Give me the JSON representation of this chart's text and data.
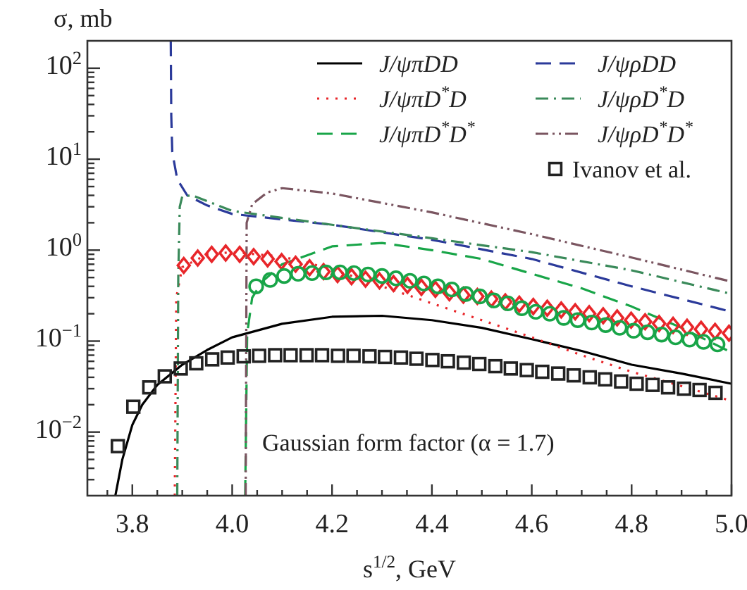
{
  "chart_data": {
    "type": "line",
    "xlabel": "s$^{1/2}$, GeV",
    "ylabel": "σ, mb",
    "log": "y",
    "xlim": [
      3.71,
      5.0
    ],
    "ylim": [
      0.002,
      200
    ],
    "xticks": [
      {
        "value": 3.75,
        "label": null
      },
      3.8,
      {
        "value": 3.85,
        "label": null
      },
      {
        "value": 3.9,
        "label": null
      },
      {
        "value": 3.95,
        "label": null
      },
      {
        "value": 4.0,
        "label": "4.0"
      },
      {
        "value": 4.05,
        "label": null
      },
      {
        "value": 4.1,
        "label": null
      },
      {
        "value": 4.15,
        "label": null
      },
      4.2,
      {
        "value": 4.25,
        "label": null
      },
      {
        "value": 4.3,
        "label": null
      },
      {
        "value": 4.35,
        "label": null
      },
      4.4,
      {
        "value": 4.45,
        "label": null
      },
      {
        "value": 4.5,
        "label": null
      },
      {
        "value": 4.55,
        "label": null
      },
      4.6,
      {
        "value": 4.65,
        "label": null
      },
      {
        "value": 4.7,
        "label": null
      },
      {
        "value": 4.75,
        "label": null
      },
      4.8,
      {
        "value": 4.85,
        "label": null
      },
      {
        "value": 4.9,
        "label": null
      },
      {
        "value": 4.95,
        "label": null
      },
      {
        "value": 5.0,
        "label": "5.0"
      }
    ],
    "yticks": [
      {
        "value": 0.003,
        "label": null
      },
      {
        "value": 0.004,
        "label": null
      },
      {
        "value": 0.005,
        "label": null
      },
      {
        "value": 0.006,
        "label": null
      },
      {
        "value": 0.007,
        "label": null
      },
      {
        "value": 0.008,
        "label": null
      },
      {
        "value": 0.009,
        "label": null
      },
      {
        "value": 0.01,
        "label": "10$^{−2}$"
      },
      {
        "value": 0.02,
        "label": null
      },
      {
        "value": 0.03,
        "label": null
      },
      {
        "value": 0.04,
        "label": null
      },
      {
        "value": 0.05,
        "label": null
      },
      {
        "value": 0.06,
        "label": null
      },
      {
        "value": 0.07,
        "label": null
      },
      {
        "value": 0.08,
        "label": null
      },
      {
        "value": 0.09,
        "label": null
      },
      {
        "value": 0.1,
        "label": "10$^{−1}$"
      },
      {
        "value": 0.2,
        "label": null
      },
      {
        "value": 0.3,
        "label": null
      },
      {
        "value": 0.4,
        "label": null
      },
      {
        "value": 0.5,
        "label": null
      },
      {
        "value": 0.6,
        "label": null
      },
      {
        "value": 0.7,
        "label": null
      },
      {
        "value": 0.8,
        "label": null
      },
      {
        "value": 0.9,
        "label": null
      },
      {
        "value": 1,
        "label": "10$^{0}$"
      },
      {
        "value": 2,
        "label": null
      },
      {
        "value": 3,
        "label": null
      },
      {
        "value": 4,
        "label": null
      },
      {
        "value": 5,
        "label": null
      },
      {
        "value": 6,
        "label": null
      },
      {
        "value": 7,
        "label": null
      },
      {
        "value": 8,
        "label": null
      },
      {
        "value": 9,
        "label": null
      },
      {
        "value": 10,
        "label": "10$^{1}$"
      },
      {
        "value": 20,
        "label": null
      },
      {
        "value": 30,
        "label": null
      },
      {
        "value": 40,
        "label": null
      },
      {
        "value": 50,
        "label": null
      },
      {
        "value": 60,
        "label": null
      },
      {
        "value": 70,
        "label": null
      },
      {
        "value": 80,
        "label": null
      },
      {
        "value": 90,
        "label": null
      },
      {
        "value": 100,
        "label": "10$^{2}$"
      }
    ],
    "grid": false,
    "legend": "top right",
    "annotations": [
      "Gaussian form factor (α = 1.7)"
    ],
    "series": [
      {
        "name": "J/ψπDD",
        "color": "#000000",
        "line_style": "solid",
        "marker": "none",
        "x": [
          3.766,
          3.78,
          3.8,
          3.82,
          3.85,
          3.9,
          3.95,
          4.0,
          4.1,
          4.2,
          4.3,
          4.4,
          4.5,
          4.6,
          4.7,
          4.8,
          4.9,
          5.0
        ],
        "values": [
          0.002,
          0.005,
          0.012,
          0.02,
          0.033,
          0.055,
          0.08,
          0.11,
          0.155,
          0.185,
          0.19,
          0.17,
          0.14,
          0.105,
          0.078,
          0.055,
          0.044,
          0.034
        ]
      },
      {
        "name": "J/ψπD$^{*}$D",
        "color": "#e8262a",
        "line_style": "dotted",
        "marker": "none",
        "x": [
          3.885,
          3.888,
          3.9,
          3.95,
          4.0,
          4.1,
          4.2,
          4.3,
          4.4,
          4.5,
          4.6,
          4.7,
          4.8,
          4.9,
          5.0
        ],
        "values": [
          0.002,
          0.3,
          0.65,
          0.9,
          0.95,
          0.85,
          0.62,
          0.4,
          0.26,
          0.17,
          0.11,
          0.07,
          0.046,
          0.032,
          0.022
        ]
      },
      {
        "name": "J/ψπD$^{*}$D$^{*}$",
        "color": "#18a548",
        "line_style": "dashed",
        "marker": "none",
        "x": [
          4.026,
          4.03,
          4.04,
          4.06,
          4.1,
          4.2,
          4.3,
          4.4,
          4.5,
          4.6,
          4.7,
          4.8,
          4.9,
          5.0
        ],
        "values": [
          0.002,
          0.12,
          0.3,
          0.45,
          0.7,
          1.1,
          1.2,
          1.0,
          0.8,
          0.55,
          0.38,
          0.24,
          0.14,
          0.075
        ]
      },
      {
        "name": "J/ψρDD",
        "color": "#2b3a9a",
        "line_style": "dashed",
        "marker": "none",
        "x": [
          3.877,
          3.878,
          3.88,
          3.89,
          3.91,
          3.95,
          4.0,
          4.2,
          4.4,
          4.6,
          4.8,
          5.0
        ],
        "values": [
          200,
          30,
          12,
          6,
          4,
          3.1,
          2.5,
          1.9,
          1.3,
          0.8,
          0.4,
          0.21
        ]
      },
      {
        "name": "J/ψρD$^{*}$D",
        "color": "#3a8a5a",
        "line_style": "dashdot",
        "marker": "none",
        "x": [
          3.89,
          3.892,
          3.895,
          3.9,
          3.92,
          4.0,
          4.2,
          4.4,
          4.6,
          4.8,
          5.0
        ],
        "values": [
          0.002,
          0.5,
          3,
          3.9,
          4.0,
          2.7,
          1.9,
          1.35,
          0.95,
          0.6,
          0.33
        ]
      },
      {
        "name": "J/ψρD$^{*}$D$^{*}$",
        "color": "#7a5560",
        "line_style": "dashdotdot",
        "marker": "none",
        "x": [
          4.027,
          4.029,
          4.04,
          4.07,
          4.1,
          4.2,
          4.4,
          4.6,
          4.8,
          5.0
        ],
        "values": [
          0.002,
          2,
          3.2,
          4.3,
          4.8,
          4.2,
          2.6,
          1.5,
          0.83,
          0.45
        ]
      },
      {
        "name": "Ivanov et al.",
        "type": "scatter",
        "color": "#222222",
        "marker": "square",
        "x": [
          3.771,
          3.802,
          3.834,
          3.865,
          3.897,
          3.928,
          3.96,
          3.991,
          4.023,
          4.054,
          4.086,
          4.117,
          4.149,
          4.18,
          4.212,
          4.243,
          4.275,
          4.306,
          4.338,
          4.369,
          4.401,
          4.432,
          4.464,
          4.495,
          4.527,
          4.558,
          4.59,
          4.621,
          4.653,
          4.684,
          4.716,
          4.747,
          4.779,
          4.81,
          4.842,
          4.873,
          4.905,
          4.936,
          4.968
        ],
        "values": [
          0.007,
          0.019,
          0.031,
          0.041,
          0.05,
          0.057,
          0.063,
          0.066,
          0.068,
          0.069,
          0.07,
          0.07,
          0.07,
          0.07,
          0.069,
          0.069,
          0.068,
          0.067,
          0.066,
          0.064,
          0.062,
          0.06,
          0.058,
          0.056,
          0.053,
          0.05,
          0.048,
          0.046,
          0.044,
          0.042,
          0.04,
          0.038,
          0.036,
          0.034,
          0.033,
          0.031,
          0.03,
          0.029,
          0.027
        ]
      },
      {
        "type": "scatter",
        "color": "#e8262a",
        "marker": "diamond",
        "x": [
          3.903,
          3.931,
          3.959,
          3.987,
          4.015,
          4.043,
          4.071,
          4.099,
          4.127,
          4.155,
          4.183,
          4.211,
          4.239,
          4.267,
          4.295,
          4.323,
          4.351,
          4.379,
          4.407,
          4.435,
          4.463,
          4.491,
          4.519,
          4.547,
          4.575,
          4.603,
          4.631,
          4.659,
          4.687,
          4.715,
          4.743,
          4.771,
          4.799,
          4.827,
          4.855,
          4.883,
          4.911,
          4.939,
          4.967,
          4.995
        ],
        "values": [
          0.68,
          0.82,
          0.9,
          0.93,
          0.9,
          0.85,
          0.8,
          0.75,
          0.7,
          0.64,
          0.58,
          0.54,
          0.51,
          0.48,
          0.46,
          0.43,
          0.41,
          0.39,
          0.37,
          0.34,
          0.32,
          0.31,
          0.29,
          0.27,
          0.255,
          0.24,
          0.23,
          0.22,
          0.21,
          0.2,
          0.19,
          0.18,
          0.17,
          0.163,
          0.156,
          0.149,
          0.142,
          0.135,
          0.128,
          0.122
        ]
      },
      {
        "type": "scatter",
        "color": "#18a548",
        "marker": "circle",
        "x": [
          4.048,
          4.076,
          4.104,
          4.132,
          4.16,
          4.188,
          4.216,
          4.244,
          4.272,
          4.3,
          4.328,
          4.356,
          4.384,
          4.412,
          4.44,
          4.468,
          4.496,
          4.524,
          4.552,
          4.58,
          4.608,
          4.636,
          4.664,
          4.692,
          4.72,
          4.748,
          4.776,
          4.804,
          4.832,
          4.86,
          4.888,
          4.916,
          4.944,
          4.972
        ],
        "values": [
          0.4,
          0.47,
          0.52,
          0.55,
          0.56,
          0.57,
          0.57,
          0.56,
          0.54,
          0.52,
          0.49,
          0.46,
          0.43,
          0.4,
          0.37,
          0.33,
          0.31,
          0.28,
          0.26,
          0.23,
          0.21,
          0.2,
          0.18,
          0.17,
          0.16,
          0.15,
          0.14,
          0.13,
          0.125,
          0.118,
          0.11,
          0.104,
          0.098,
          0.092
        ]
      }
    ]
  }
}
